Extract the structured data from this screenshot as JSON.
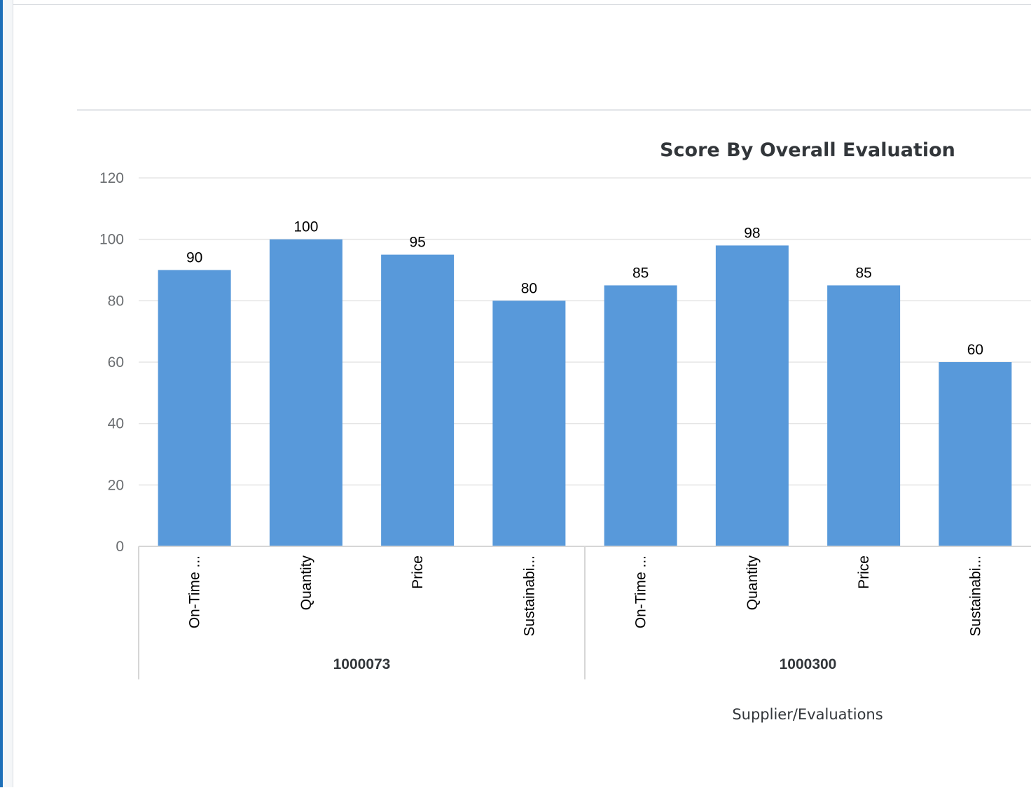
{
  "colors": {
    "bar": "#5899da",
    "grid": "#e5e5e5",
    "axis": "#d6d6d6",
    "accent": "#1d6fb8"
  },
  "chart_data": {
    "type": "bar",
    "title": "Score By Overall Evaluation",
    "xlabel": "Supplier/Evaluations",
    "ylabel": "",
    "ylim": [
      0,
      120
    ],
    "yticks": [
      0,
      20,
      40,
      60,
      80,
      100,
      120
    ],
    "grid": true,
    "groups": [
      {
        "label": "1000073",
        "categories": [
          "On-Time ...",
          "Quantity",
          "Price",
          "Sustainabi..."
        ],
        "values": [
          90,
          100,
          95,
          80
        ]
      },
      {
        "label": "1000300",
        "categories": [
          "On-Time ...",
          "Quantity",
          "Price",
          "Sustainabi..."
        ],
        "values": [
          85,
          98,
          85,
          60
        ]
      }
    ]
  }
}
